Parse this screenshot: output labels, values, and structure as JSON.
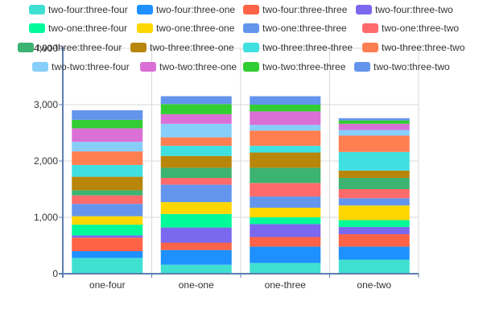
{
  "chart_data": {
    "type": "bar",
    "stacked": true,
    "categories": [
      "one-four",
      "one-one",
      "one-three",
      "one-two"
    ],
    "ylim": [
      0,
      4000
    ],
    "yticks": [
      0,
      1000,
      2000,
      3000,
      4000
    ],
    "ytick_labels": [
      "0",
      "1,000",
      "2,000",
      "3,000",
      "4,000"
    ],
    "grid": true,
    "legend_position": "top",
    "series": [
      {
        "name": "two-four:three-four",
        "color": "#40E0D0",
        "values": [
          280,
          160,
          190,
          250
        ]
      },
      {
        "name": "two-four:three-one",
        "color": "#1E90FF",
        "values": [
          120,
          260,
          290,
          230
        ]
      },
      {
        "name": "two-four:three-three",
        "color": "#FF6347",
        "values": [
          240,
          130,
          170,
          220
        ]
      },
      {
        "name": "two-four:three-two",
        "color": "#7B68EE",
        "values": [
          40,
          270,
          230,
          130
        ]
      },
      {
        "name": "two-one:three-four",
        "color": "#00FA9A",
        "values": [
          190,
          240,
          120,
          120
        ]
      },
      {
        "name": "two-one:three-one",
        "color": "#FFD700",
        "values": [
          150,
          210,
          170,
          260
        ]
      },
      {
        "name": "two-one:three-three",
        "color": "#6495ED",
        "values": [
          220,
          310,
          200,
          130
        ]
      },
      {
        "name": "two-one:three-two",
        "color": "#FF6A6A",
        "values": [
          150,
          120,
          240,
          160
        ]
      },
      {
        "name": "two-three:three-four",
        "color": "#3CB371",
        "values": [
          90,
          180,
          270,
          200
        ]
      },
      {
        "name": "two-three:three-one",
        "color": "#B8860B",
        "values": [
          240,
          210,
          270,
          130
        ]
      },
      {
        "name": "two-three:three-three",
        "color": "#40E0E0",
        "values": [
          210,
          180,
          120,
          330
        ]
      },
      {
        "name": "two-three:three-two",
        "color": "#FF7F50",
        "values": [
          240,
          150,
          270,
          290
        ]
      },
      {
        "name": "two-two:three-four",
        "color": "#87CEFA",
        "values": [
          170,
          240,
          100,
          100
        ]
      },
      {
        "name": "two-two:three-one",
        "color": "#DA70D6",
        "values": [
          240,
          170,
          240,
          110
        ]
      },
      {
        "name": "two-two:three-three",
        "color": "#32CD32",
        "values": [
          150,
          180,
          120,
          60
        ]
      },
      {
        "name": "two-two:three-two",
        "color": "#6495ED",
        "values": [
          170,
          140,
          150,
          40
        ]
      }
    ]
  }
}
